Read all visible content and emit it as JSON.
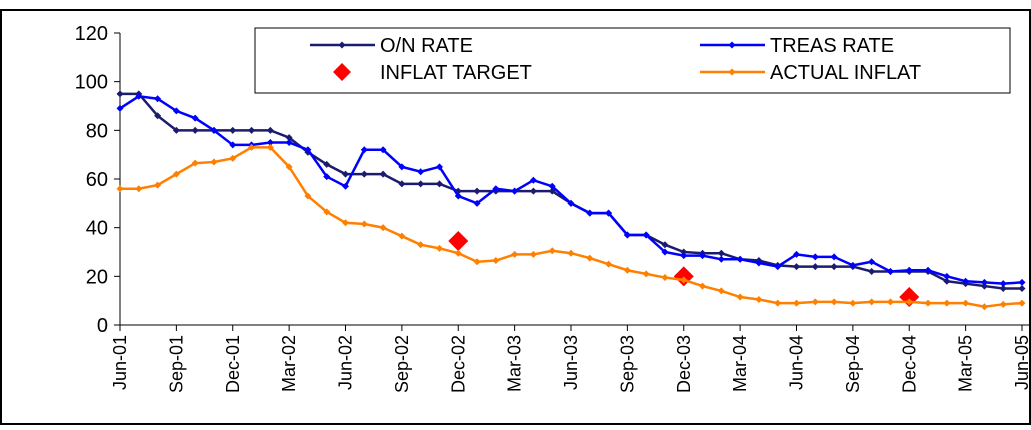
{
  "chart_data": {
    "type": "line",
    "categories": [
      "Jun-01",
      null,
      null,
      "Sep-01",
      null,
      null,
      "Dec-01",
      null,
      null,
      "Mar-02",
      null,
      null,
      "Jun-02",
      null,
      null,
      "Sep-02",
      null,
      null,
      "Dec-02",
      null,
      null,
      "Mar-03",
      null,
      null,
      "Jun-03",
      null,
      null,
      "Sep-03",
      null,
      null,
      "Dec-03",
      null,
      null,
      "Mar-04",
      null,
      null,
      "Jun-04",
      null,
      null,
      "Sep-04",
      null,
      null,
      "Dec-04",
      null,
      null,
      "Mar-05",
      null,
      null,
      "Jun-05"
    ],
    "ylim": [
      0,
      120
    ],
    "yticks": [
      0,
      20,
      40,
      60,
      80,
      100,
      120
    ],
    "grid": false,
    "series": [
      {
        "name": "O/N RATE",
        "color": "#1c1c6e",
        "style": "line",
        "values": [
          95,
          95,
          86,
          80,
          80,
          80,
          80,
          80,
          80,
          77,
          71,
          66,
          62,
          62,
          62,
          58,
          58,
          58,
          55,
          55,
          55,
          55,
          55,
          55,
          50,
          46,
          46,
          37,
          37,
          33,
          30,
          29.5,
          29.5,
          27,
          26.5,
          24.5,
          24,
          24,
          24,
          24,
          22,
          22,
          22,
          22,
          18,
          17,
          16,
          15,
          15
        ]
      },
      {
        "name": "TREAS RATE",
        "color": "#0000ff",
        "style": "line",
        "values": [
          89,
          94,
          93,
          88,
          85,
          80,
          74,
          74,
          75,
          75,
          72,
          61,
          57,
          72,
          72,
          65,
          63,
          65,
          53,
          50,
          56,
          55,
          59.5,
          57,
          50,
          46,
          46,
          37,
          37,
          30,
          28.5,
          28.5,
          27,
          27,
          25.5,
          24,
          29,
          28,
          28,
          24.5,
          26,
          22,
          22.5,
          22.5,
          20,
          18,
          17.5,
          17,
          17.5
        ]
      },
      {
        "name": "INFLAT TARGET",
        "color": "#ff0000",
        "style": "markers",
        "values": [
          null,
          null,
          null,
          null,
          null,
          null,
          null,
          null,
          null,
          null,
          null,
          null,
          null,
          null,
          null,
          null,
          null,
          null,
          34.5,
          null,
          null,
          null,
          null,
          null,
          null,
          null,
          null,
          null,
          null,
          null,
          20,
          null,
          null,
          null,
          null,
          null,
          null,
          null,
          null,
          null,
          null,
          null,
          11.5,
          null,
          null,
          null,
          null,
          null,
          null
        ]
      },
      {
        "name": "ACTUAL INFLAT",
        "color": "#ff8000",
        "style": "line",
        "values": [
          56,
          56,
          57.5,
          62,
          66.5,
          67,
          68.5,
          73,
          73,
          65,
          53,
          46.5,
          42,
          41.5,
          40,
          36.5,
          33,
          31.5,
          29.5,
          26,
          26.5,
          29,
          29,
          30.5,
          29.5,
          27.5,
          25,
          22.5,
          21,
          19.5,
          18.5,
          16,
          14,
          11.5,
          10.5,
          9,
          9,
          9.5,
          9.5,
          9,
          9.5,
          9.5,
          9.5,
          9,
          9,
          9,
          7.5,
          8.5,
          9
        ]
      }
    ]
  }
}
